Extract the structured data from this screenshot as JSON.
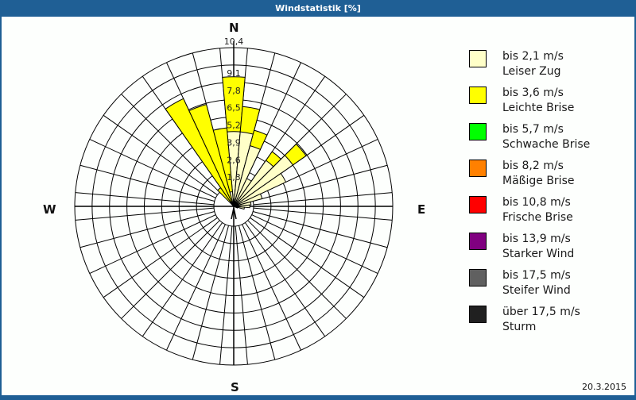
{
  "window": {
    "title": "Windstatistik [%]"
  },
  "footer": {
    "date": "20.3.2015"
  },
  "directions": {
    "n": "N",
    "e": "E",
    "s": "S",
    "w": "W"
  },
  "legend": [
    {
      "line1": "bis 2,1 m/s",
      "line2": "Leiser Zug",
      "color": "#ffffc8"
    },
    {
      "line1": "bis 3,6 m/s",
      "line2": "Leichte Brise",
      "color": "#ffff00"
    },
    {
      "line1": "bis 5,7 m/s",
      "line2": "Schwache Brise",
      "color": "#00ff00"
    },
    {
      "line1": "bis 8,2 m/s",
      "line2": "Mäßige Brise",
      "color": "#ff8000"
    },
    {
      "line1": "bis 10,8 m/s",
      "line2": "Frische Brise",
      "color": "#ff0000"
    },
    {
      "line1": "bis 13,9 m/s",
      "line2": "Starker Wind",
      "color": "#800080"
    },
    {
      "line1": "bis 17,5 m/s",
      "line2": "Steifer Wind",
      "color": "#606060"
    },
    {
      "line1": "über 17,5 m/s",
      "line2": "Sturm",
      "color": "#202020"
    }
  ],
  "chart_data": {
    "type": "polar-bar (wind rose)",
    "title": "Windstatistik [%]",
    "radial_ticks": [
      "1,3",
      "2,6",
      "3,9",
      "5,2",
      "6,5",
      "7,8",
      "9,1",
      "10,4"
    ],
    "radial_max": 10.4,
    "sector_width_deg": 10,
    "series": [
      {
        "name": "bis 2,1 m/s Leiser Zug",
        "color": "#ffffc8"
      },
      {
        "name": "bis 3,6 m/s Leichte Brise",
        "color": "#ffff00"
      }
    ],
    "sectors": [
      {
        "dir_deg": 0,
        "leiser_zug": 5.6,
        "leichte_brise": 4.1
      },
      {
        "dir_deg": 10,
        "leiser_zug": 5.6,
        "leichte_brise": 1.9
      },
      {
        "dir_deg": 20,
        "leiser_zug": 4.7,
        "leichte_brise": 1.2
      },
      {
        "dir_deg": 30,
        "leiser_zug": 2.3,
        "leichte_brise": 0
      },
      {
        "dir_deg": 40,
        "leiser_zug": 4.2,
        "leichte_brise": 0.8
      },
      {
        "dir_deg": 50,
        "leiser_zug": 5.4,
        "leichte_brise": 1.2
      },
      {
        "dir_deg": 60,
        "leiser_zug": 4.3,
        "leichte_brise": 0
      },
      {
        "dir_deg": 70,
        "leiser_zug": 2.2,
        "leichte_brise": 0
      },
      {
        "dir_deg": 80,
        "leiser_zug": 1.3,
        "leichte_brise": 0
      },
      {
        "dir_deg": 90,
        "leiser_zug": 1.2,
        "leichte_brise": 0
      },
      {
        "dir_deg": 100,
        "leiser_zug": 0.8,
        "leichte_brise": 0
      },
      {
        "dir_deg": 110,
        "leiser_zug": 0.3,
        "leichte_brise": 0
      },
      {
        "dir_deg": 320,
        "leiser_zug": 0.2,
        "leichte_brise": 1.5
      },
      {
        "dir_deg": 330,
        "leiser_zug": 0.3,
        "leichte_brise": 8.6
      },
      {
        "dir_deg": 340,
        "leiser_zug": 0.4,
        "leichte_brise": 7.5
      },
      {
        "dir_deg": 350,
        "leiser_zug": 1.1,
        "leichte_brise": 4.8
      }
    ],
    "legend_position": "right",
    "grid": true
  }
}
